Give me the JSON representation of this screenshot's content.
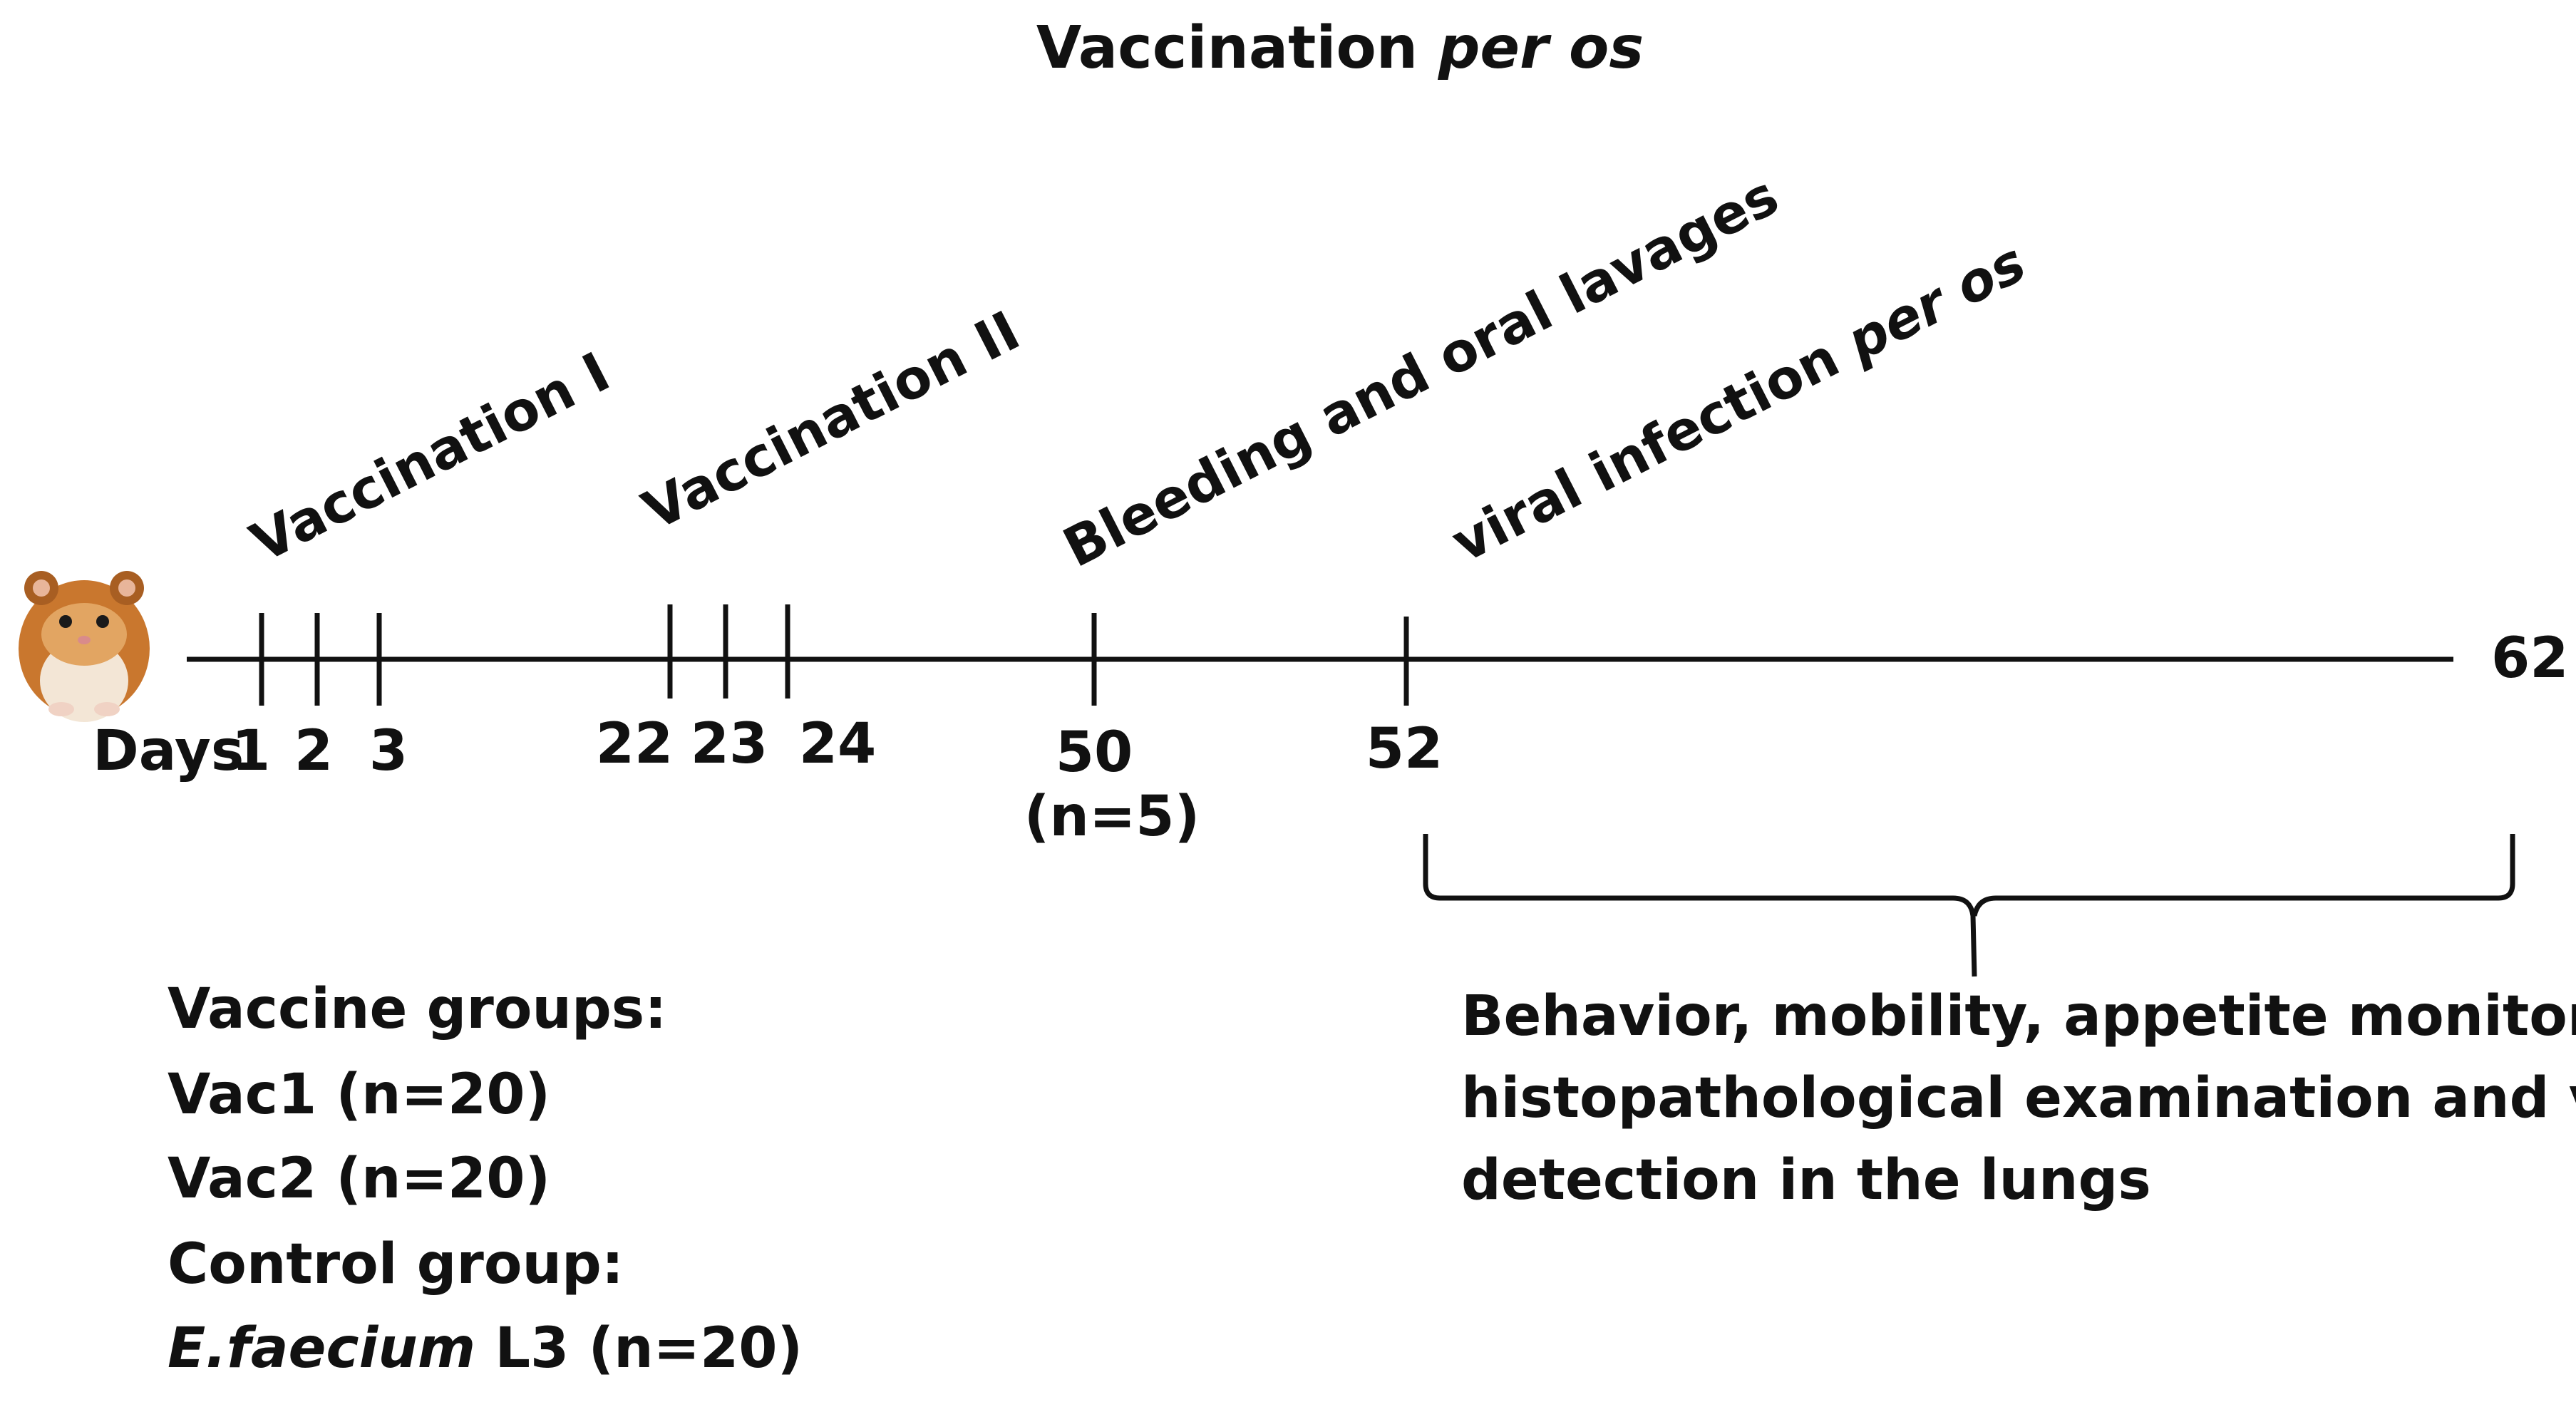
{
  "title": {
    "main": "Vaccination ",
    "emphasis": "per os"
  },
  "axis": {
    "prefix": "Days",
    "end_label": "62"
  },
  "events": [
    {
      "label": "Vaccination  I",
      "days": [
        "1",
        "2",
        "3"
      ]
    },
    {
      "label": "Vaccination  II",
      "days": [
        "22",
        "23",
        "24"
      ]
    },
    {
      "label": "Bleeding and oral lavages",
      "days": [
        "50"
      ],
      "note": "(n=5)"
    },
    {
      "label": "viral infection ",
      "label_italic": "per os",
      "days": [
        "52"
      ]
    }
  ],
  "outcome": {
    "lines": [
      "Behavior, mobility, appetite monitoring,",
      "histopathological examination and virus",
      "detection in the lungs"
    ]
  },
  "groups": {
    "vaccine_heading": "Vaccine groups:",
    "vac1": "Vac1 (n=20)",
    "vac2": "Vac2 (n=20)",
    "control_heading": "Control group:",
    "control_species": "E.faecium",
    "control_rest": " L3 (n=20)"
  },
  "icon": "hamster-icon"
}
